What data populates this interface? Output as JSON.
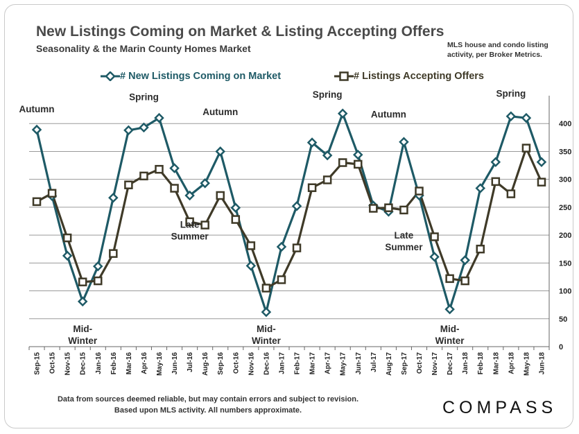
{
  "header": {
    "title": "New Listings Coming on Market & Listing Accepting Offers",
    "subtitle": "Seasonality & the Marin County Homes Market",
    "note_line1": "MLS house and condo listing",
    "note_line2": "activity, per Broker Metrics."
  },
  "footer": {
    "line1": "Data from sources deemed reliable, but may contain errors and subject to revision.",
    "line2": "Based upon MLS activity. All numbers approximate.",
    "brand": "COMPASS"
  },
  "chart_data": {
    "type": "line",
    "title": "New Listings Coming on Market & Listing Accepting Offers",
    "subtitle": "Seasonality & the Marin County Homes Market",
    "categories": [
      "Sep-15",
      "Oct-15",
      "Nov-15",
      "Dec-15",
      "Jan-16",
      "Feb-16",
      "Mar-16",
      "Apr-16",
      "May-16",
      "Jun-16",
      "Jul-16",
      "Aug-16",
      "Sep-16",
      "Oct-16",
      "Nov-16",
      "Dec-16",
      "Jan-17",
      "Feb-17",
      "Mar-17",
      "Apr-17",
      "May-17",
      "Jun-17",
      "Jul-17",
      "Aug-17",
      "Sep-17",
      "Oct-17",
      "Nov-17",
      "Dec-17",
      "Jan-18",
      "Feb-18",
      "Mar-18",
      "Apr-18",
      "May-18",
      "Jun-18"
    ],
    "series": [
      {
        "name": "# New Listings Coming on Market",
        "color": "#1e5a66",
        "marker": "diamond",
        "values": [
          389,
          270,
          163,
          81,
          144,
          267,
          388,
          393,
          410,
          320,
          271,
          293,
          350,
          249,
          145,
          62,
          179,
          252,
          366,
          343,
          418,
          344,
          253,
          242,
          367,
          271,
          161,
          67,
          155,
          284,
          331,
          413,
          410,
          331
        ]
      },
      {
        "name": "# Listings Accepting Offers",
        "color": "#3f3a28",
        "marker": "square",
        "values": [
          260,
          275,
          195,
          116,
          118,
          167,
          290,
          306,
          318,
          284,
          224,
          218,
          271,
          228,
          181,
          105,
          120,
          177,
          285,
          299,
          330,
          327,
          248,
          249,
          245,
          279,
          197,
          122,
          118,
          175,
          296,
          274,
          356,
          295
        ]
      }
    ],
    "yaxis": {
      "min": 0,
      "max": 400,
      "ticks": [
        0,
        50,
        100,
        150,
        200,
        250,
        300,
        350,
        400
      ],
      "position": "right"
    },
    "grid": true,
    "legend_position": "top",
    "annotations": [
      {
        "lines": [
          "Autumn"
        ],
        "category": "Sep-15",
        "value": 420
      },
      {
        "lines": [
          "Mid-",
          "Winter"
        ],
        "category": "Dec-15",
        "value": 26
      },
      {
        "lines": [
          "Spring"
        ],
        "category": "Apr-16",
        "value": 442
      },
      {
        "lines": [
          "Autumn"
        ],
        "category": "Sep-16",
        "value": 415
      },
      {
        "lines": [
          "Late",
          "Summer"
        ],
        "category": "Jul-16",
        "value": 213
      },
      {
        "lines": [
          "Mid-",
          "Winter"
        ],
        "category": "Dec-16",
        "value": 26
      },
      {
        "lines": [
          "Spring"
        ],
        "category": "Apr-17",
        "value": 446
      },
      {
        "lines": [
          "Autumn"
        ],
        "category": "Aug-17",
        "value": 411
      },
      {
        "lines": [
          "Late",
          "Summer"
        ],
        "category": "Sep-17",
        "value": 194
      },
      {
        "lines": [
          "Mid-",
          "Winter"
        ],
        "category": "Dec-17",
        "value": 26
      },
      {
        "lines": [
          "Spring"
        ],
        "category": "Apr-18",
        "value": 448
      }
    ]
  }
}
